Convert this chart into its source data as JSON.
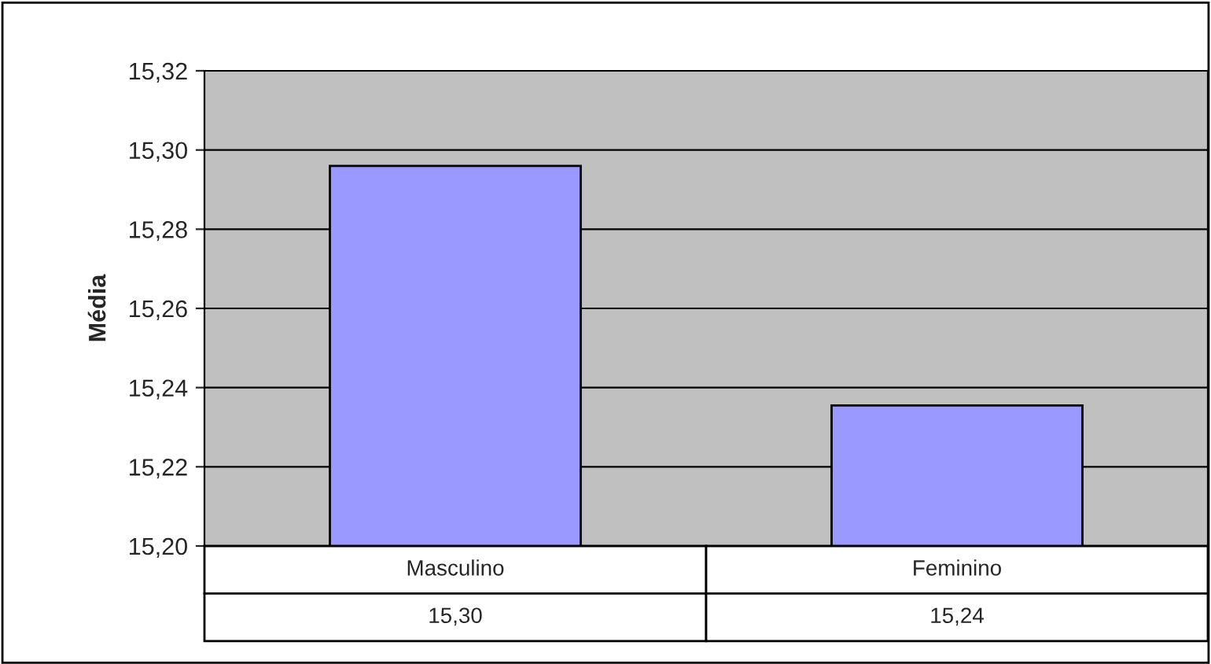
{
  "chart_data": {
    "type": "bar",
    "ylabel": "Média",
    "categories": [
      "Masculino",
      "Feminino"
    ],
    "values": [
      15.296,
      15.2355
    ],
    "color": "#9999ff",
    "value_labels": [
      "15,30",
      "15,24"
    ],
    "ylim": [
      15.2,
      15.32
    ],
    "yticks": [
      {
        "value": 15.2,
        "label": "15,20"
      },
      {
        "value": 15.22,
        "label": "15,22"
      },
      {
        "value": 15.24,
        "label": "15,24"
      },
      {
        "value": 15.26,
        "label": "15,26"
      },
      {
        "value": 15.28,
        "label": "15,28"
      },
      {
        "value": 15.3,
        "label": "15,30"
      },
      {
        "value": 15.32,
        "label": "15,32"
      }
    ],
    "grid": "y",
    "legend": false
  }
}
